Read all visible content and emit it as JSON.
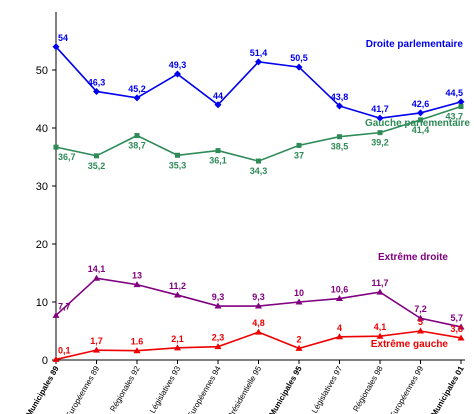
{
  "chart_data": {
    "type": "line",
    "categories": [
      "Municipales 89",
      "Européennes 89",
      "Régionales 92",
      "Législatives 93",
      "Européennes 94",
      "Présidentielle 95",
      "Municipales 95",
      "Législatives 97",
      "Régionales 98",
      "Européennes 99",
      "Municipales 01"
    ],
    "bold_categories": [
      0,
      6,
      10
    ],
    "ylim": [
      0,
      60
    ],
    "yticks": [
      0,
      10,
      20,
      30,
      40,
      50
    ],
    "grid": false,
    "series": [
      {
        "name": "Droite parlementaire",
        "color": "#0000ee",
        "marker": "diamond",
        "values": [
          54,
          46.3,
          45.2,
          49.3,
          44,
          51.4,
          50.5,
          43.8,
          41.7,
          42.6,
          44.5
        ],
        "labels": [
          "54",
          "46,3",
          "45,2",
          "49,3",
          "44",
          "51,4",
          "50,5",
          "43,8",
          "41,7",
          "42,6",
          "44,5"
        ],
        "label_pos": "above"
      },
      {
        "name": "Gauche parlementaire",
        "color": "#2e8b57",
        "marker": "square",
        "values": [
          36.7,
          35.2,
          38.7,
          35.3,
          36.1,
          34.3,
          37,
          38.5,
          39.2,
          41.4,
          43.7
        ],
        "labels": [
          "36,7",
          "35,2",
          "38,7",
          "35,3",
          "36,1",
          "34,3",
          "37",
          "38,5",
          "39,2",
          "41,4",
          "43,7"
        ],
        "label_pos": "below"
      },
      {
        "name": "Extrême droite",
        "color": "#800080",
        "marker": "triangle",
        "values": [
          7.7,
          14.1,
          13,
          11.2,
          9.3,
          9.3,
          10,
          10.6,
          11.7,
          7.2,
          5.7
        ],
        "labels": [
          "7,7",
          "14,1",
          "13",
          "11,2",
          "9,3",
          "9,3",
          "10",
          "10,6",
          "11,7",
          "7,2",
          "5,7"
        ],
        "label_pos": "above"
      },
      {
        "name": "Extrême gauche",
        "color": "#ee0000",
        "marker": "triangle",
        "values": [
          0.1,
          1.7,
          1.6,
          2.1,
          2.3,
          4.8,
          2,
          4,
          4.1,
          5,
          3.8
        ],
        "labels": [
          "0,1",
          "1,7",
          "1.6",
          "2,1",
          "2,3",
          "4,8",
          "2",
          "4",
          "4,1",
          "5",
          "3,8"
        ],
        "label_pos": "above"
      }
    ]
  }
}
